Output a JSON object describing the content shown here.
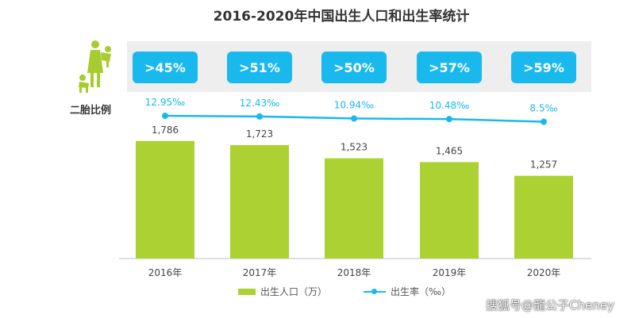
{
  "colors": {
    "bar": "#acd132",
    "line": "#19b9ee",
    "box": "#19b9ee",
    "band": "#eeeeee",
    "icon": "#a6cc2e"
  },
  "icons": {
    "family": "parent-with-children-icon"
  },
  "second_child_label": "二胎比例",
  "second_child_ratios": [
    ">45%",
    ">51%",
    ">50%",
    ">57%",
    ">59%"
  ],
  "watermark": "搜狐号@龍公子Cheney",
  "chart_data": {
    "type": "bar",
    "title": "2016-2020年中国出生人口和出生率统计",
    "categories": [
      "2016年",
      "2017年",
      "2018年",
      "2019年",
      "2020年"
    ],
    "series": [
      {
        "name": "出生人口（万）",
        "type": "bar",
        "values": [
          1786,
          1723,
          1523,
          1465,
          1257
        ],
        "labels": [
          "1,786",
          "1,723",
          "1,523",
          "1,465",
          "1,257"
        ]
      },
      {
        "name": "出生率（‰）",
        "type": "line",
        "values": [
          12.95,
          12.43,
          10.94,
          10.48,
          8.5
        ],
        "labels": [
          "12.95‰",
          "12.43‰",
          "10.94‰",
          "10.48‰",
          "8.5‰"
        ]
      }
    ],
    "ylim": [
      0,
      2000
    ],
    "legend_position": "bottom",
    "grid": false
  }
}
